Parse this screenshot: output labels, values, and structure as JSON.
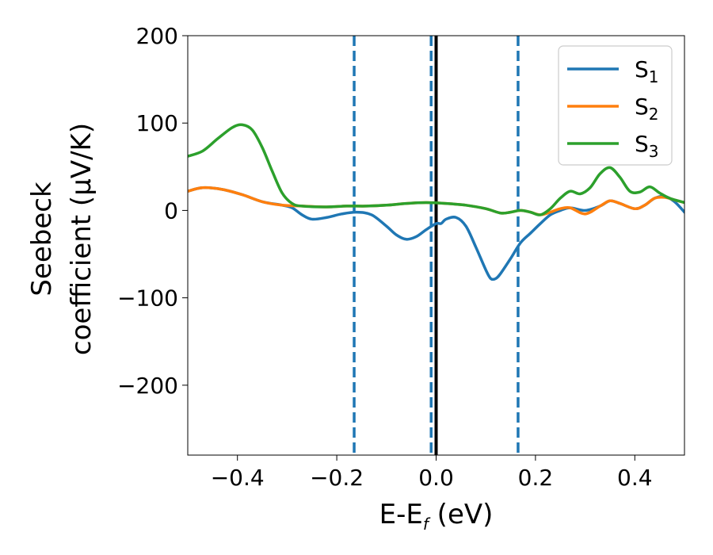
{
  "chart_data": {
    "type": "line",
    "xlabel": "E-E",
    "xlabel_sub": "f",
    "xlabel_unit": " (eV)",
    "ylabel_line1": "Seebeck",
    "ylabel_line2": "coefficient  (μV/K)",
    "xlim": [
      -0.5,
      0.5
    ],
    "ylim": [
      -280,
      200
    ],
    "xticks": [
      -0.4,
      -0.2,
      0.0,
      0.2,
      0.4
    ],
    "xtick_labels": [
      "−0.4",
      "−0.2",
      "0.0",
      "0.2",
      "0.4"
    ],
    "yticks": [
      -200,
      -100,
      0,
      100,
      200
    ],
    "ytick_labels": [
      "−200",
      "−100",
      "0",
      "100",
      "200"
    ],
    "grid": false,
    "legend_position": "top-right",
    "vlines": [
      {
        "x": -0.165,
        "style": "dashed",
        "color": "#1f77b4"
      },
      {
        "x": -0.01,
        "style": "dashed",
        "color": "#1f77b4"
      },
      {
        "x": 0.165,
        "style": "dashed",
        "color": "#1f77b4"
      },
      {
        "x": 0.0,
        "style": "solid",
        "color": "#000000"
      }
    ],
    "series": [
      {
        "name": "S",
        "name_sub": "1",
        "color": "#1f77b4",
        "points": [
          [
            -0.5,
            22
          ],
          [
            -0.47,
            26
          ],
          [
            -0.43,
            24
          ],
          [
            -0.39,
            18
          ],
          [
            -0.35,
            10
          ],
          [
            -0.31,
            6
          ],
          [
            -0.29,
            3
          ],
          [
            -0.27,
            -5
          ],
          [
            -0.25,
            -10
          ],
          [
            -0.22,
            -8
          ],
          [
            -0.19,
            -4
          ],
          [
            -0.16,
            -2
          ],
          [
            -0.13,
            -5
          ],
          [
            -0.1,
            -18
          ],
          [
            -0.08,
            -28
          ],
          [
            -0.06,
            -33
          ],
          [
            -0.04,
            -30
          ],
          [
            -0.02,
            -22
          ],
          [
            0.0,
            -15
          ],
          [
            0.01,
            -15
          ],
          [
            0.02,
            -10
          ],
          [
            0.04,
            -8
          ],
          [
            0.06,
            -18
          ],
          [
            0.08,
            -42
          ],
          [
            0.1,
            -68
          ],
          [
            0.11,
            -78
          ],
          [
            0.12,
            -78
          ],
          [
            0.13,
            -72
          ],
          [
            0.15,
            -55
          ],
          [
            0.17,
            -37
          ],
          [
            0.19,
            -26
          ],
          [
            0.21,
            -15
          ],
          [
            0.23,
            -5
          ],
          [
            0.25,
            0
          ],
          [
            0.27,
            3
          ],
          [
            0.3,
            0
          ],
          [
            0.33,
            5
          ],
          [
            0.35,
            11
          ],
          [
            0.37,
            8
          ],
          [
            0.4,
            2
          ],
          [
            0.42,
            6
          ],
          [
            0.44,
            14
          ],
          [
            0.46,
            16
          ],
          [
            0.48,
            10
          ],
          [
            0.5,
            -2
          ]
        ]
      },
      {
        "name": "S",
        "name_sub": "2",
        "color": "#ff7f0e",
        "points": [
          [
            -0.5,
            22
          ],
          [
            -0.47,
            26
          ],
          [
            -0.43,
            24
          ],
          [
            -0.39,
            18
          ],
          [
            -0.35,
            10
          ],
          [
            -0.31,
            6
          ],
          [
            -0.27,
            5
          ],
          [
            -0.22,
            4
          ],
          [
            -0.18,
            5
          ],
          [
            -0.14,
            5
          ],
          [
            -0.1,
            6
          ],
          [
            -0.06,
            8
          ],
          [
            -0.02,
            9
          ],
          [
            0.02,
            8
          ],
          [
            0.06,
            6
          ],
          [
            0.1,
            2
          ],
          [
            0.13,
            -3
          ],
          [
            0.15,
            -2
          ],
          [
            0.17,
            0
          ],
          [
            0.19,
            -2
          ],
          [
            0.21,
            -5
          ],
          [
            0.23,
            -2
          ],
          [
            0.25,
            2
          ],
          [
            0.27,
            3
          ],
          [
            0.3,
            -4
          ],
          [
            0.33,
            5
          ],
          [
            0.35,
            11
          ],
          [
            0.37,
            8
          ],
          [
            0.4,
            2
          ],
          [
            0.42,
            6
          ],
          [
            0.44,
            14
          ],
          [
            0.46,
            15
          ],
          [
            0.48,
            12
          ],
          [
            0.5,
            9
          ]
        ]
      },
      {
        "name": "S",
        "name_sub": "3",
        "color": "#2ca02c",
        "points": [
          [
            -0.5,
            62
          ],
          [
            -0.47,
            68
          ],
          [
            -0.44,
            82
          ],
          [
            -0.41,
            95
          ],
          [
            -0.39,
            98
          ],
          [
            -0.37,
            92
          ],
          [
            -0.35,
            72
          ],
          [
            -0.33,
            45
          ],
          [
            -0.31,
            20
          ],
          [
            -0.29,
            8
          ],
          [
            -0.27,
            5
          ],
          [
            -0.22,
            4
          ],
          [
            -0.18,
            5
          ],
          [
            -0.14,
            5
          ],
          [
            -0.1,
            6
          ],
          [
            -0.06,
            8
          ],
          [
            -0.02,
            9
          ],
          [
            0.02,
            8
          ],
          [
            0.06,
            6
          ],
          [
            0.1,
            2
          ],
          [
            0.13,
            -3
          ],
          [
            0.15,
            -2
          ],
          [
            0.17,
            0
          ],
          [
            0.19,
            -2
          ],
          [
            0.21,
            -5
          ],
          [
            0.23,
            2
          ],
          [
            0.25,
            14
          ],
          [
            0.27,
            22
          ],
          [
            0.29,
            19
          ],
          [
            0.31,
            26
          ],
          [
            0.33,
            42
          ],
          [
            0.35,
            49
          ],
          [
            0.37,
            38
          ],
          [
            0.39,
            22
          ],
          [
            0.41,
            21
          ],
          [
            0.43,
            27
          ],
          [
            0.45,
            20
          ],
          [
            0.47,
            14
          ],
          [
            0.5,
            9
          ]
        ]
      }
    ]
  }
}
